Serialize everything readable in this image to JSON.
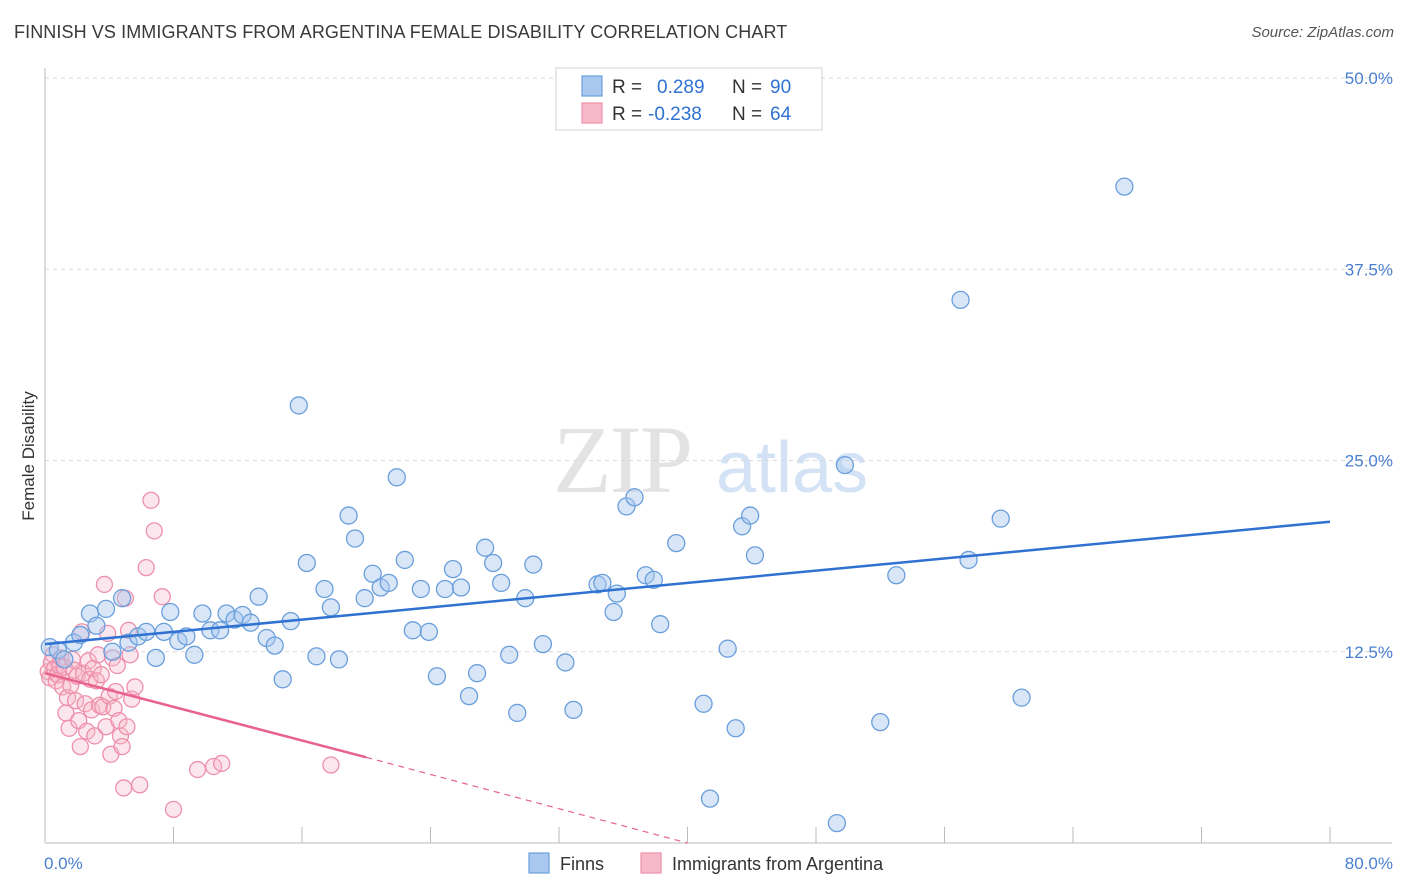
{
  "title": "FINNISH VS IMMIGRANTS FROM ARGENTINA FEMALE DISABILITY CORRELATION CHART",
  "source": "Source: ZipAtlas.com",
  "watermark_zip": "ZIP",
  "watermark_atlas": "atlas",
  "colors": {
    "finns_fill": "#a9c8f0",
    "finns_stroke": "#6a9fdc",
    "finns_line": "#2f72d1",
    "arg_fill": "#f7b8ca",
    "arg_stroke": "#ee8fab",
    "arg_line": "#e8628f",
    "tick_text": "#4a7fd0",
    "grid": "#d9d9d9"
  },
  "legend": {
    "rows": [
      {
        "r_label": "R =",
        "r_value": "0.289",
        "n_label": "N =",
        "n_value": "90"
      },
      {
        "r_label": "R =",
        "r_value": "-0.238",
        "n_label": "N =",
        "n_value": "64"
      }
    ]
  },
  "bottom_legend": [
    "Finns",
    "Immigrants from Argentina"
  ],
  "chart_data": {
    "type": "scatter",
    "ylabel": "Female Disability",
    "xlabel": "",
    "xlim": [
      0,
      80
    ],
    "ylim": [
      0,
      50
    ],
    "x_tick_labels": [
      "0.0%",
      "80.0%"
    ],
    "y_ticks": [
      12.5,
      25.0,
      37.5,
      50.0
    ],
    "y_tick_labels": [
      "12.5%",
      "25.0%",
      "37.5%",
      "50.0%"
    ],
    "grid": true,
    "legend_position": "top-center",
    "series": [
      {
        "name": "Finns",
        "r": 0.289,
        "n": 90,
        "trend": {
          "x": [
            0,
            80
          ],
          "y": [
            13.0,
            21.0
          ]
        },
        "points": [
          [
            0.3,
            12.8
          ],
          [
            0.8,
            12.6
          ],
          [
            1.2,
            12.0
          ],
          [
            1.8,
            13.1
          ],
          [
            2.2,
            13.6
          ],
          [
            2.8,
            15.0
          ],
          [
            3.2,
            14.2
          ],
          [
            3.8,
            15.3
          ],
          [
            4.2,
            12.5
          ],
          [
            4.8,
            16.0
          ],
          [
            5.2,
            13.1
          ],
          [
            5.8,
            13.5
          ],
          [
            6.3,
            13.8
          ],
          [
            6.9,
            12.1
          ],
          [
            7.4,
            13.8
          ],
          [
            7.8,
            15.1
          ],
          [
            8.3,
            13.2
          ],
          [
            8.8,
            13.5
          ],
          [
            9.3,
            12.3
          ],
          [
            9.8,
            15.0
          ],
          [
            10.3,
            13.9
          ],
          [
            10.9,
            13.9
          ],
          [
            11.3,
            15.0
          ],
          [
            11.8,
            14.6
          ],
          [
            12.3,
            14.9
          ],
          [
            12.8,
            14.4
          ],
          [
            13.3,
            16.1
          ],
          [
            13.8,
            13.4
          ],
          [
            14.3,
            12.9
          ],
          [
            14.8,
            10.7
          ],
          [
            15.3,
            14.5
          ],
          [
            15.8,
            28.6
          ],
          [
            16.3,
            18.3
          ],
          [
            16.9,
            12.2
          ],
          [
            17.4,
            16.6
          ],
          [
            17.8,
            15.4
          ],
          [
            18.3,
            12.0
          ],
          [
            18.9,
            21.4
          ],
          [
            19.3,
            19.9
          ],
          [
            19.9,
            16.0
          ],
          [
            20.4,
            17.6
          ],
          [
            20.9,
            16.7
          ],
          [
            21.4,
            17.0
          ],
          [
            21.9,
            23.9
          ],
          [
            22.4,
            18.5
          ],
          [
            22.9,
            13.9
          ],
          [
            23.4,
            16.6
          ],
          [
            23.9,
            13.8
          ],
          [
            24.4,
            10.9
          ],
          [
            24.9,
            16.6
          ],
          [
            25.4,
            17.9
          ],
          [
            25.9,
            16.7
          ],
          [
            26.4,
            9.6
          ],
          [
            26.9,
            11.1
          ],
          [
            27.4,
            19.3
          ],
          [
            27.9,
            18.3
          ],
          [
            28.4,
            17.0
          ],
          [
            28.9,
            12.3
          ],
          [
            29.4,
            8.5
          ],
          [
            29.9,
            16.0
          ],
          [
            30.4,
            18.2
          ],
          [
            31.0,
            13.0
          ],
          [
            32.4,
            11.8
          ],
          [
            32.9,
            8.7
          ],
          [
            34.4,
            16.9
          ],
          [
            34.7,
            17.0
          ],
          [
            35.4,
            15.1
          ],
          [
            35.6,
            16.3
          ],
          [
            36.2,
            22.0
          ],
          [
            36.7,
            22.6
          ],
          [
            37.4,
            17.5
          ],
          [
            37.9,
            17.2
          ],
          [
            38.3,
            14.3
          ],
          [
            39.3,
            19.6
          ],
          [
            41.0,
            9.1
          ],
          [
            41.4,
            2.9
          ],
          [
            42.5,
            12.7
          ],
          [
            43.0,
            7.5
          ],
          [
            43.4,
            20.7
          ],
          [
            43.9,
            21.4
          ],
          [
            44.2,
            18.8
          ],
          [
            49.3,
            1.3
          ],
          [
            49.8,
            24.7
          ],
          [
            52.0,
            7.9
          ],
          [
            53.0,
            17.5
          ],
          [
            57.0,
            35.5
          ],
          [
            57.5,
            18.5
          ],
          [
            59.5,
            21.2
          ],
          [
            60.8,
            9.5
          ],
          [
            67.2,
            42.9
          ]
        ]
      },
      {
        "name": "Immigrants from Argentina",
        "r": -0.238,
        "n": 64,
        "trend": {
          "x": [
            0,
            20
          ],
          "y": [
            11.1,
            5.6
          ]
        },
        "trend_dashed": {
          "x": [
            20,
            40
          ],
          "y": [
            5.6,
            0.0
          ]
        },
        "points": [
          [
            0.2,
            11.2
          ],
          [
            0.3,
            10.8
          ],
          [
            0.4,
            11.8
          ],
          [
            0.5,
            12.3
          ],
          [
            0.6,
            11.4
          ],
          [
            0.7,
            10.6
          ],
          [
            0.8,
            11.0
          ],
          [
            0.9,
            11.6
          ],
          [
            1.0,
            12.1
          ],
          [
            1.1,
            10.2
          ],
          [
            1.2,
            11.5
          ],
          [
            1.3,
            8.5
          ],
          [
            1.4,
            9.5
          ],
          [
            1.5,
            7.5
          ],
          [
            1.6,
            10.3
          ],
          [
            1.7,
            12.0
          ],
          [
            1.8,
            11.3
          ],
          [
            1.9,
            9.3
          ],
          [
            2.0,
            10.9
          ],
          [
            2.1,
            8.0
          ],
          [
            2.2,
            6.3
          ],
          [
            2.3,
            13.8
          ],
          [
            2.4,
            11.1
          ],
          [
            2.5,
            9.1
          ],
          [
            2.6,
            7.3
          ],
          [
            2.7,
            11.9
          ],
          [
            2.8,
            10.7
          ],
          [
            2.9,
            8.7
          ],
          [
            3.0,
            11.4
          ],
          [
            3.1,
            7.0
          ],
          [
            3.2,
            10.6
          ],
          [
            3.3,
            12.3
          ],
          [
            3.4,
            9.0
          ],
          [
            3.5,
            11.0
          ],
          [
            3.6,
            8.9
          ],
          [
            3.7,
            16.9
          ],
          [
            3.8,
            7.6
          ],
          [
            3.9,
            13.7
          ],
          [
            4.0,
            9.6
          ],
          [
            4.1,
            5.8
          ],
          [
            4.2,
            12.1
          ],
          [
            4.3,
            8.8
          ],
          [
            4.4,
            9.9
          ],
          [
            4.5,
            11.6
          ],
          [
            4.6,
            8.0
          ],
          [
            4.7,
            7.0
          ],
          [
            4.8,
            6.3
          ],
          [
            4.9,
            3.6
          ],
          [
            5.0,
            16.0
          ],
          [
            5.1,
            7.6
          ],
          [
            5.2,
            13.9
          ],
          [
            5.3,
            12.3
          ],
          [
            5.4,
            9.4
          ],
          [
            5.6,
            10.2
          ],
          [
            5.9,
            3.8
          ],
          [
            6.3,
            18.0
          ],
          [
            6.8,
            20.4
          ],
          [
            7.3,
            16.1
          ],
          [
            8.0,
            2.2
          ],
          [
            9.5,
            4.8
          ],
          [
            10.5,
            5.0
          ],
          [
            11.0,
            5.2
          ],
          [
            17.8,
            5.1
          ],
          [
            6.6,
            22.4
          ]
        ]
      }
    ]
  }
}
